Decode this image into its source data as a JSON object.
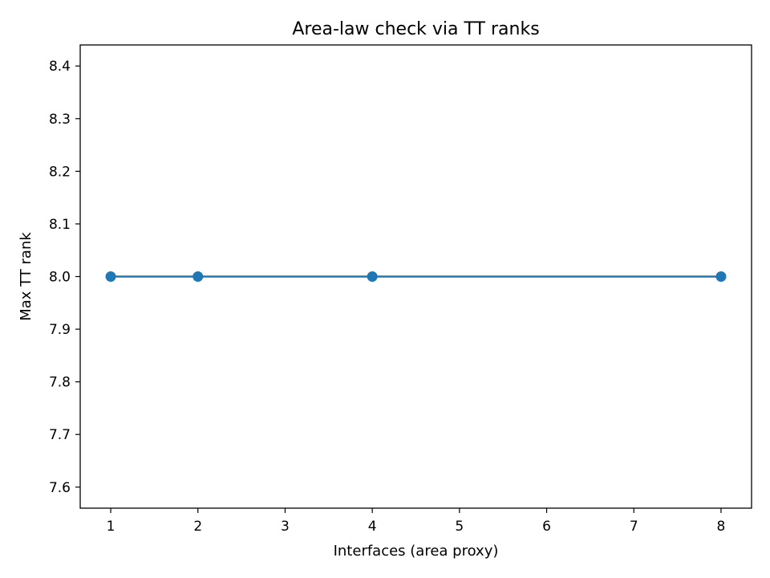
{
  "chart_data": {
    "type": "line",
    "title": "Area-law check via TT ranks",
    "xlabel": "Interfaces (area proxy)",
    "ylabel": "Max TT rank",
    "xlim": [
      0.65,
      8.35
    ],
    "ylim": [
      7.56,
      8.44
    ],
    "xticks": [
      1,
      2,
      3,
      4,
      5,
      6,
      7,
      8
    ],
    "yticks": [
      7.6,
      7.7,
      7.8,
      7.9,
      8.0,
      8.1,
      8.2,
      8.3,
      8.4
    ],
    "grid": false,
    "series": [
      {
        "color": "#1f77b4",
        "marker": "circle",
        "x": [
          1,
          2,
          4,
          8
        ],
        "y": [
          8.0,
          8.0,
          8.0,
          8.0
        ]
      }
    ]
  }
}
